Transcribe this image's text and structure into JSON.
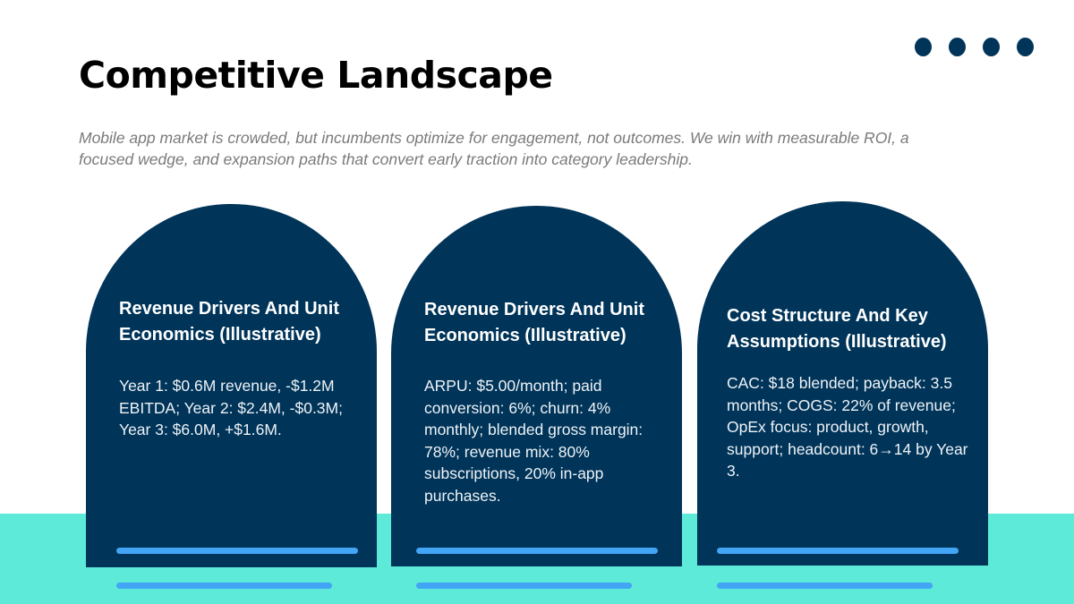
{
  "title": "Competitive Landscape",
  "subtitle": "Mobile app market is crowded, but incumbents optimize for engagement, not outcomes. We win with measurable ROI, a focused wedge, and expansion paths that convert early traction into category leadership.",
  "colors": {
    "primary": "#003459",
    "accent_band": "#5eead8",
    "bar": "#42a5f5"
  },
  "cards": [
    {
      "heading": "Revenue Drivers And Unit Economics (Illustrative)",
      "body": "Year 1: $0.6M revenue, -$1.2M EBITDA; Year 2: $2.4M, -$0.3M; Year 3: $6.0M, +$1.6M."
    },
    {
      "heading": "Revenue Drivers And Unit Economics (Illustrative)",
      "body": "ARPU: $5.00/month; paid conversion: 6%; churn: 4% monthly; blended gross margin: 78%; revenue mix: 80% subscriptions, 20% in-app purchases."
    },
    {
      "heading": "Cost Structure And Key Assumptions (Illustrative)",
      "body": "CAC: $18 blended; payback: 3.5 months; COGS: 22% of revenue; OpEx focus: product, growth, support; headcount: 6→14 by Year 3."
    }
  ]
}
